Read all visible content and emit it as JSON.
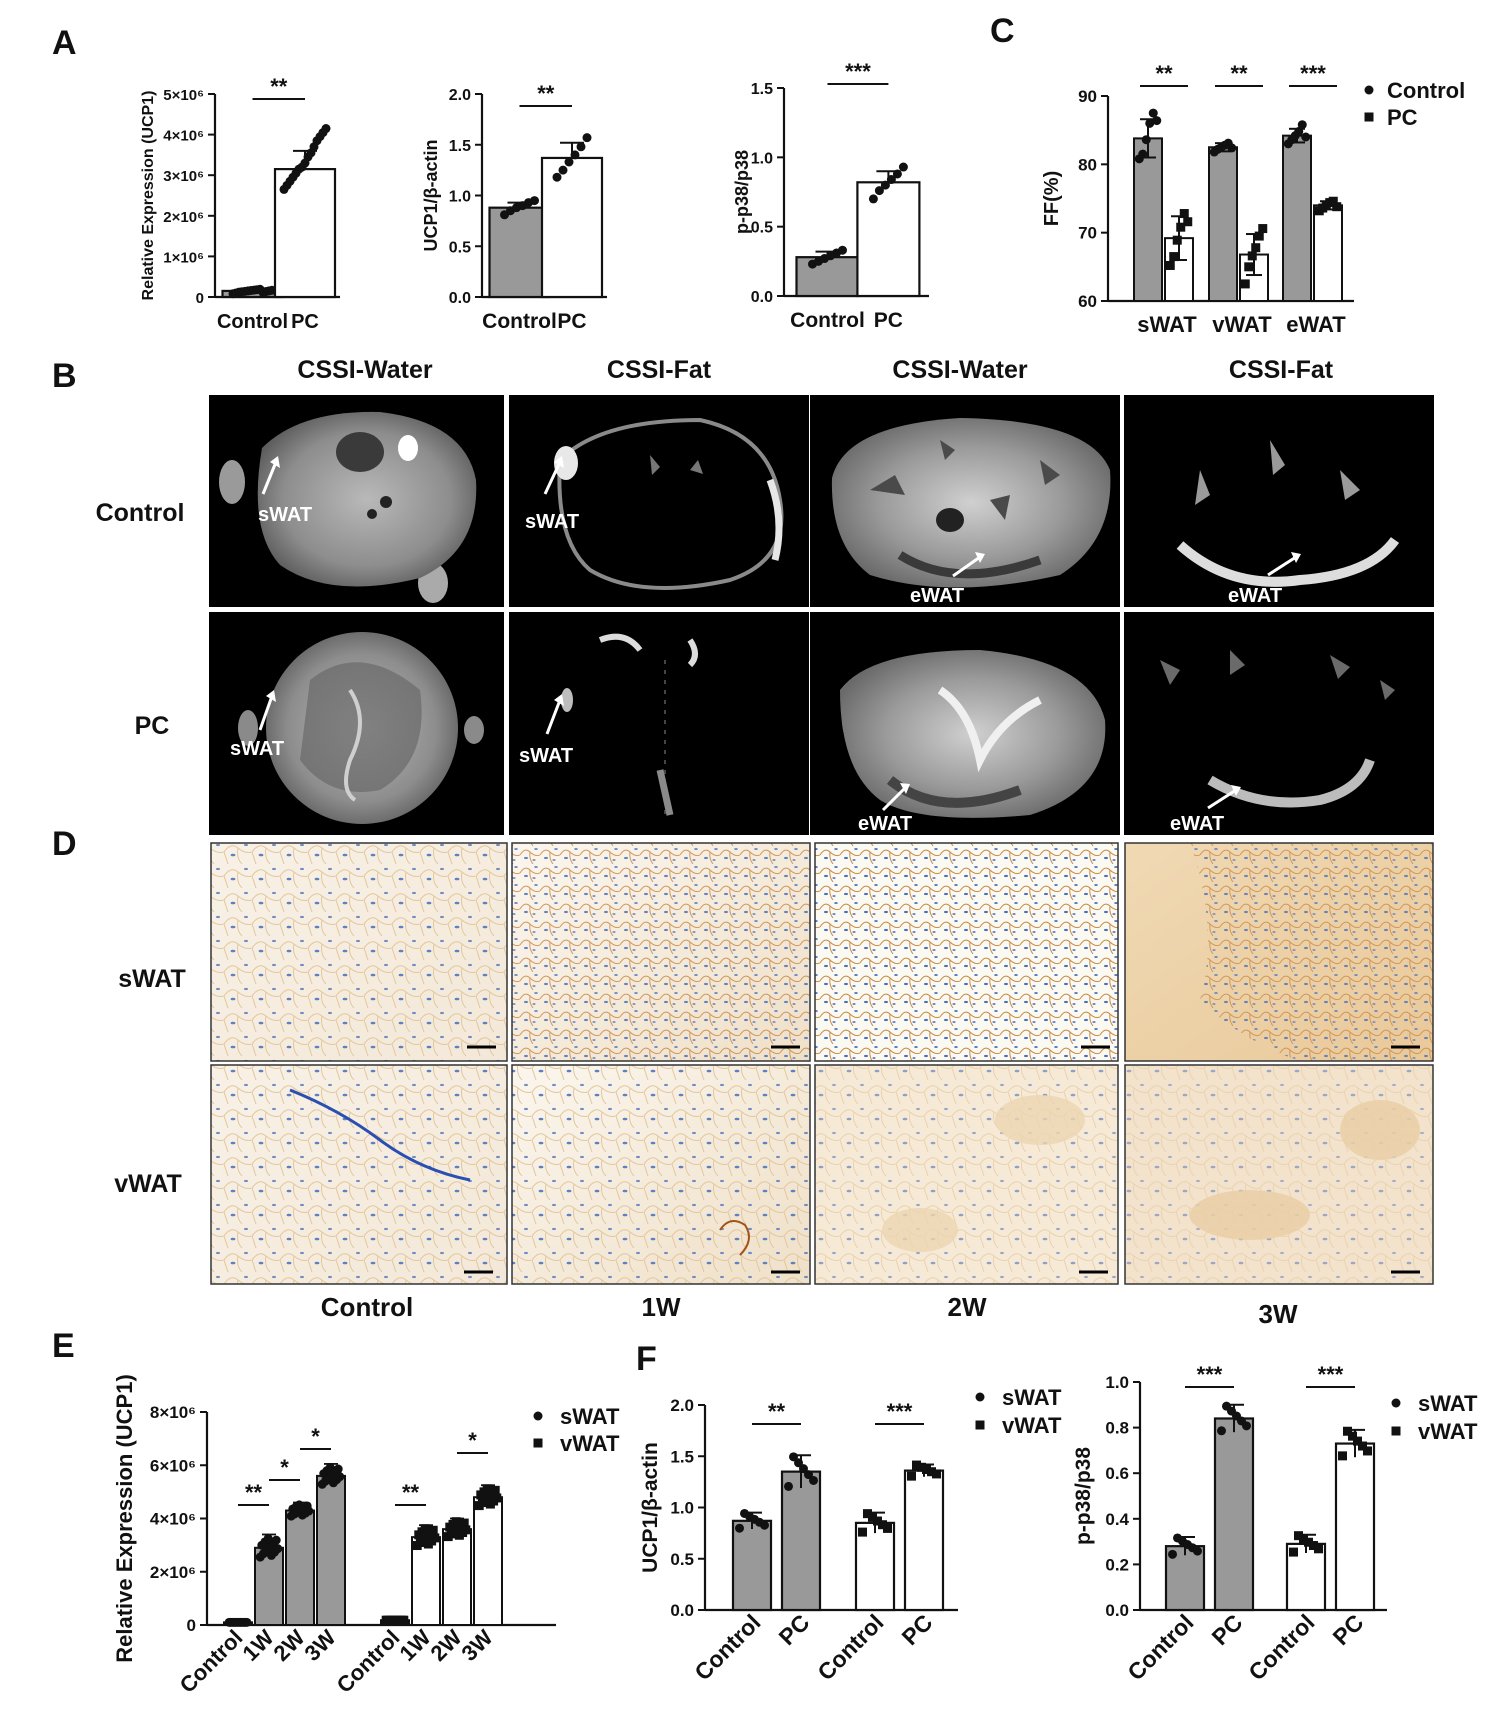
{
  "panel_letters": {
    "A": "A",
    "B": "B",
    "C": "C",
    "D": "D",
    "E": "E",
    "F": "F"
  },
  "chart_data": [
    {
      "id": "A1",
      "type": "bar",
      "categories": [
        "Control",
        "PC"
      ],
      "values": [
        150000,
        3150000
      ],
      "errors": [
        30000,
        450000
      ],
      "points": [
        [
          80000,
          100000,
          120000,
          130000,
          140000,
          150000,
          160000,
          170000,
          180000,
          190000,
          110000,
          135000,
          150000,
          165000
        ],
        [
          2650000,
          2750000,
          2850000,
          2950000,
          3050000,
          3150000,
          3200000,
          3300000,
          3450000,
          3550000,
          3700000,
          3850000,
          3950000,
          4050000,
          4150000
        ]
      ],
      "ylabel": "Relative Expression (UCP1)",
      "ylim": [
        0,
        5000000
      ],
      "ytick_labels": [
        "0",
        "1×10⁶",
        "2×10⁶",
        "3×10⁶",
        "4×10⁶",
        "5×10⁶"
      ],
      "ytick_values": [
        0,
        1000000,
        2000000,
        3000000,
        4000000,
        5000000
      ],
      "significance": [
        {
          "from": 0,
          "to": 1,
          "label": "**"
        }
      ]
    },
    {
      "id": "A2",
      "type": "bar",
      "categories": [
        "Control",
        "PC"
      ],
      "values": [
        0.88,
        1.37
      ],
      "errors": [
        0.05,
        0.15
      ],
      "points": [
        [
          0.81,
          0.85,
          0.88,
          0.9,
          0.93,
          0.95
        ],
        [
          1.18,
          1.25,
          1.33,
          1.4,
          1.48,
          1.57
        ]
      ],
      "ylabel": "UCP1/β-actin",
      "ylim": [
        0,
        2.0
      ],
      "ytick_labels": [
        "0.0",
        "0.5",
        "1.0",
        "1.5",
        "2.0"
      ],
      "ytick_values": [
        0,
        0.5,
        1.0,
        1.5,
        2.0
      ],
      "significance": [
        {
          "from": 0,
          "to": 1,
          "label": "**"
        }
      ]
    },
    {
      "id": "A3",
      "type": "bar",
      "categories": [
        "Control",
        "PC"
      ],
      "values": [
        0.28,
        0.82
      ],
      "errors": [
        0.04,
        0.08
      ],
      "points": [
        [
          0.23,
          0.25,
          0.27,
          0.29,
          0.31,
          0.33
        ],
        [
          0.7,
          0.76,
          0.8,
          0.84,
          0.88,
          0.93
        ]
      ],
      "ylabel": "p-p38/p38",
      "ylim": [
        0,
        1.5
      ],
      "ytick_labels": [
        "0.0",
        "0.5",
        "1.0",
        "1.5"
      ],
      "ytick_values": [
        0,
        0.5,
        1.0,
        1.5
      ],
      "significance": [
        {
          "from": 0,
          "to": 1,
          "label": "***"
        }
      ]
    },
    {
      "id": "C",
      "type": "bar",
      "categories": [
        "sWAT",
        "vWAT",
        "eWAT"
      ],
      "series": [
        {
          "name": "Control",
          "values": [
            83.8,
            82.5,
            84.2
          ],
          "errors": [
            2.8,
            0.6,
            1.0
          ],
          "points": [
            [
              80.8,
              81.5,
              83.6,
              86.0,
              87.5,
              86.4
            ],
            [
              81.8,
              82.2,
              82.5,
              82.8,
              83.1,
              82.4
            ],
            [
              83.0,
              83.6,
              84.2,
              84.8,
              85.8,
              84.0
            ]
          ]
        },
        {
          "name": "PC",
          "values": [
            69.2,
            66.8,
            74.0
          ],
          "errors": [
            3.2,
            3.0,
            0.6
          ],
          "points": [
            [
              65.2,
              66.5,
              68.9,
              70.8,
              72.8,
              71.6
            ],
            [
              62.5,
              65.0,
              66.6,
              67.8,
              69.5,
              70.6
            ],
            [
              73.2,
              73.6,
              74.0,
              74.4,
              74.6,
              73.8
            ]
          ]
        }
      ],
      "ylabel": "FF(%)",
      "ylim": [
        60,
        90
      ],
      "ytick_labels": [
        "60",
        "70",
        "80",
        "90"
      ],
      "ytick_values": [
        60,
        70,
        80,
        90
      ],
      "significance": [
        {
          "group": 0,
          "label": "**"
        },
        {
          "group": 1,
          "label": "**"
        },
        {
          "group": 2,
          "label": "***"
        }
      ],
      "legend": [
        "Control",
        "PC"
      ],
      "legend_placement": "top-right"
    },
    {
      "id": "E",
      "type": "bar",
      "groups": [
        "sWAT",
        "vWAT"
      ],
      "categories": [
        "Control",
        "1W",
        "2W",
        "3W"
      ],
      "series": [
        {
          "name": "sWAT",
          "values": [
            100000,
            2900000,
            4300000,
            5600000
          ],
          "errors": [
            30000,
            500000,
            300000,
            450000
          ]
        },
        {
          "name": "vWAT",
          "values": [
            180000,
            3300000,
            3600000,
            4800000
          ],
          "errors": [
            30000,
            450000,
            400000,
            450000
          ]
        }
      ],
      "ylabel": "Relative Expression (UCP1)",
      "ylim": [
        0,
        8000000
      ],
      "ytick_labels": [
        "0",
        "2×10⁶",
        "4×10⁶",
        "6×10⁶",
        "8×10⁶"
      ],
      "ytick_values": [
        0,
        2000000,
        4000000,
        6000000,
        8000000
      ],
      "significance": [
        {
          "group": 0,
          "from": 0,
          "to": 1,
          "label": "**"
        },
        {
          "group": 0,
          "from": 1,
          "to": 2,
          "label": "*"
        },
        {
          "group": 0,
          "from": 2,
          "to": 3,
          "label": "*"
        },
        {
          "group": 1,
          "from": 0,
          "to": 1,
          "label": "**"
        },
        {
          "group": 1,
          "from": 2,
          "to": 3,
          "label": "*"
        }
      ],
      "legend": [
        "sWAT",
        "vWAT"
      ],
      "legend_placement": "top-right"
    },
    {
      "id": "F1",
      "type": "bar",
      "groups": [
        "sWAT",
        "vWAT"
      ],
      "categories": [
        "Control",
        "PC"
      ],
      "series": [
        {
          "name": "sWAT",
          "values": [
            0.87,
            1.35
          ],
          "errors": [
            0.08,
            0.16
          ]
        },
        {
          "name": "vWAT",
          "values": [
            0.85,
            1.36
          ],
          "errors": [
            0.1,
            0.06
          ]
        }
      ],
      "ylabel": "UCP1/β-actin",
      "ylim": [
        0,
        2.0
      ],
      "ytick_labels": [
        "0.0",
        "0.5",
        "1.0",
        "1.5",
        "2.0"
      ],
      "ytick_values": [
        0,
        0.5,
        1.0,
        1.5,
        2.0
      ],
      "significance": [
        {
          "group": 0,
          "label": "**"
        },
        {
          "group": 1,
          "label": "***"
        }
      ],
      "legend": [
        "sWAT",
        "vWAT"
      ],
      "legend_placement": "top-right"
    },
    {
      "id": "F2",
      "type": "bar",
      "groups": [
        "sWAT",
        "vWAT"
      ],
      "categories": [
        "Control",
        "PC"
      ],
      "series": [
        {
          "name": "sWAT",
          "values": [
            0.28,
            0.84
          ],
          "errors": [
            0.04,
            0.06
          ]
        },
        {
          "name": "vWAT",
          "values": [
            0.29,
            0.73
          ],
          "errors": [
            0.04,
            0.06
          ]
        }
      ],
      "ylabel": "p-p38/p38",
      "ylim": [
        0,
        1.0
      ],
      "ytick_labels": [
        "0.0",
        "0.2",
        "0.4",
        "0.6",
        "0.8",
        "1.0"
      ],
      "ytick_values": [
        0,
        0.2,
        0.4,
        0.6,
        0.8,
        1.0
      ],
      "significance": [
        {
          "group": 0,
          "label": "***"
        },
        {
          "group": 1,
          "label": "***"
        }
      ],
      "legend": [
        "sWAT",
        "vWAT"
      ],
      "legend_placement": "top-right"
    }
  ],
  "mri": {
    "columns": [
      "CSSI-Water",
      "CSSI-Fat",
      "CSSI-Water",
      "CSSI-Fat"
    ],
    "rows": [
      "Control",
      "PC"
    ],
    "annotations": [
      "sWAT",
      "sWAT",
      "eWAT",
      "eWAT",
      "sWAT",
      "sWAT",
      "eWAT",
      "eWAT"
    ]
  },
  "histology": {
    "rows": [
      "sWAT",
      "vWAT"
    ],
    "columns": [
      "Control",
      "1W",
      "2W",
      "3W"
    ]
  },
  "colors": {
    "control_bar": "#999999",
    "pc_bar": "#ffffff",
    "ink": "#111111"
  }
}
